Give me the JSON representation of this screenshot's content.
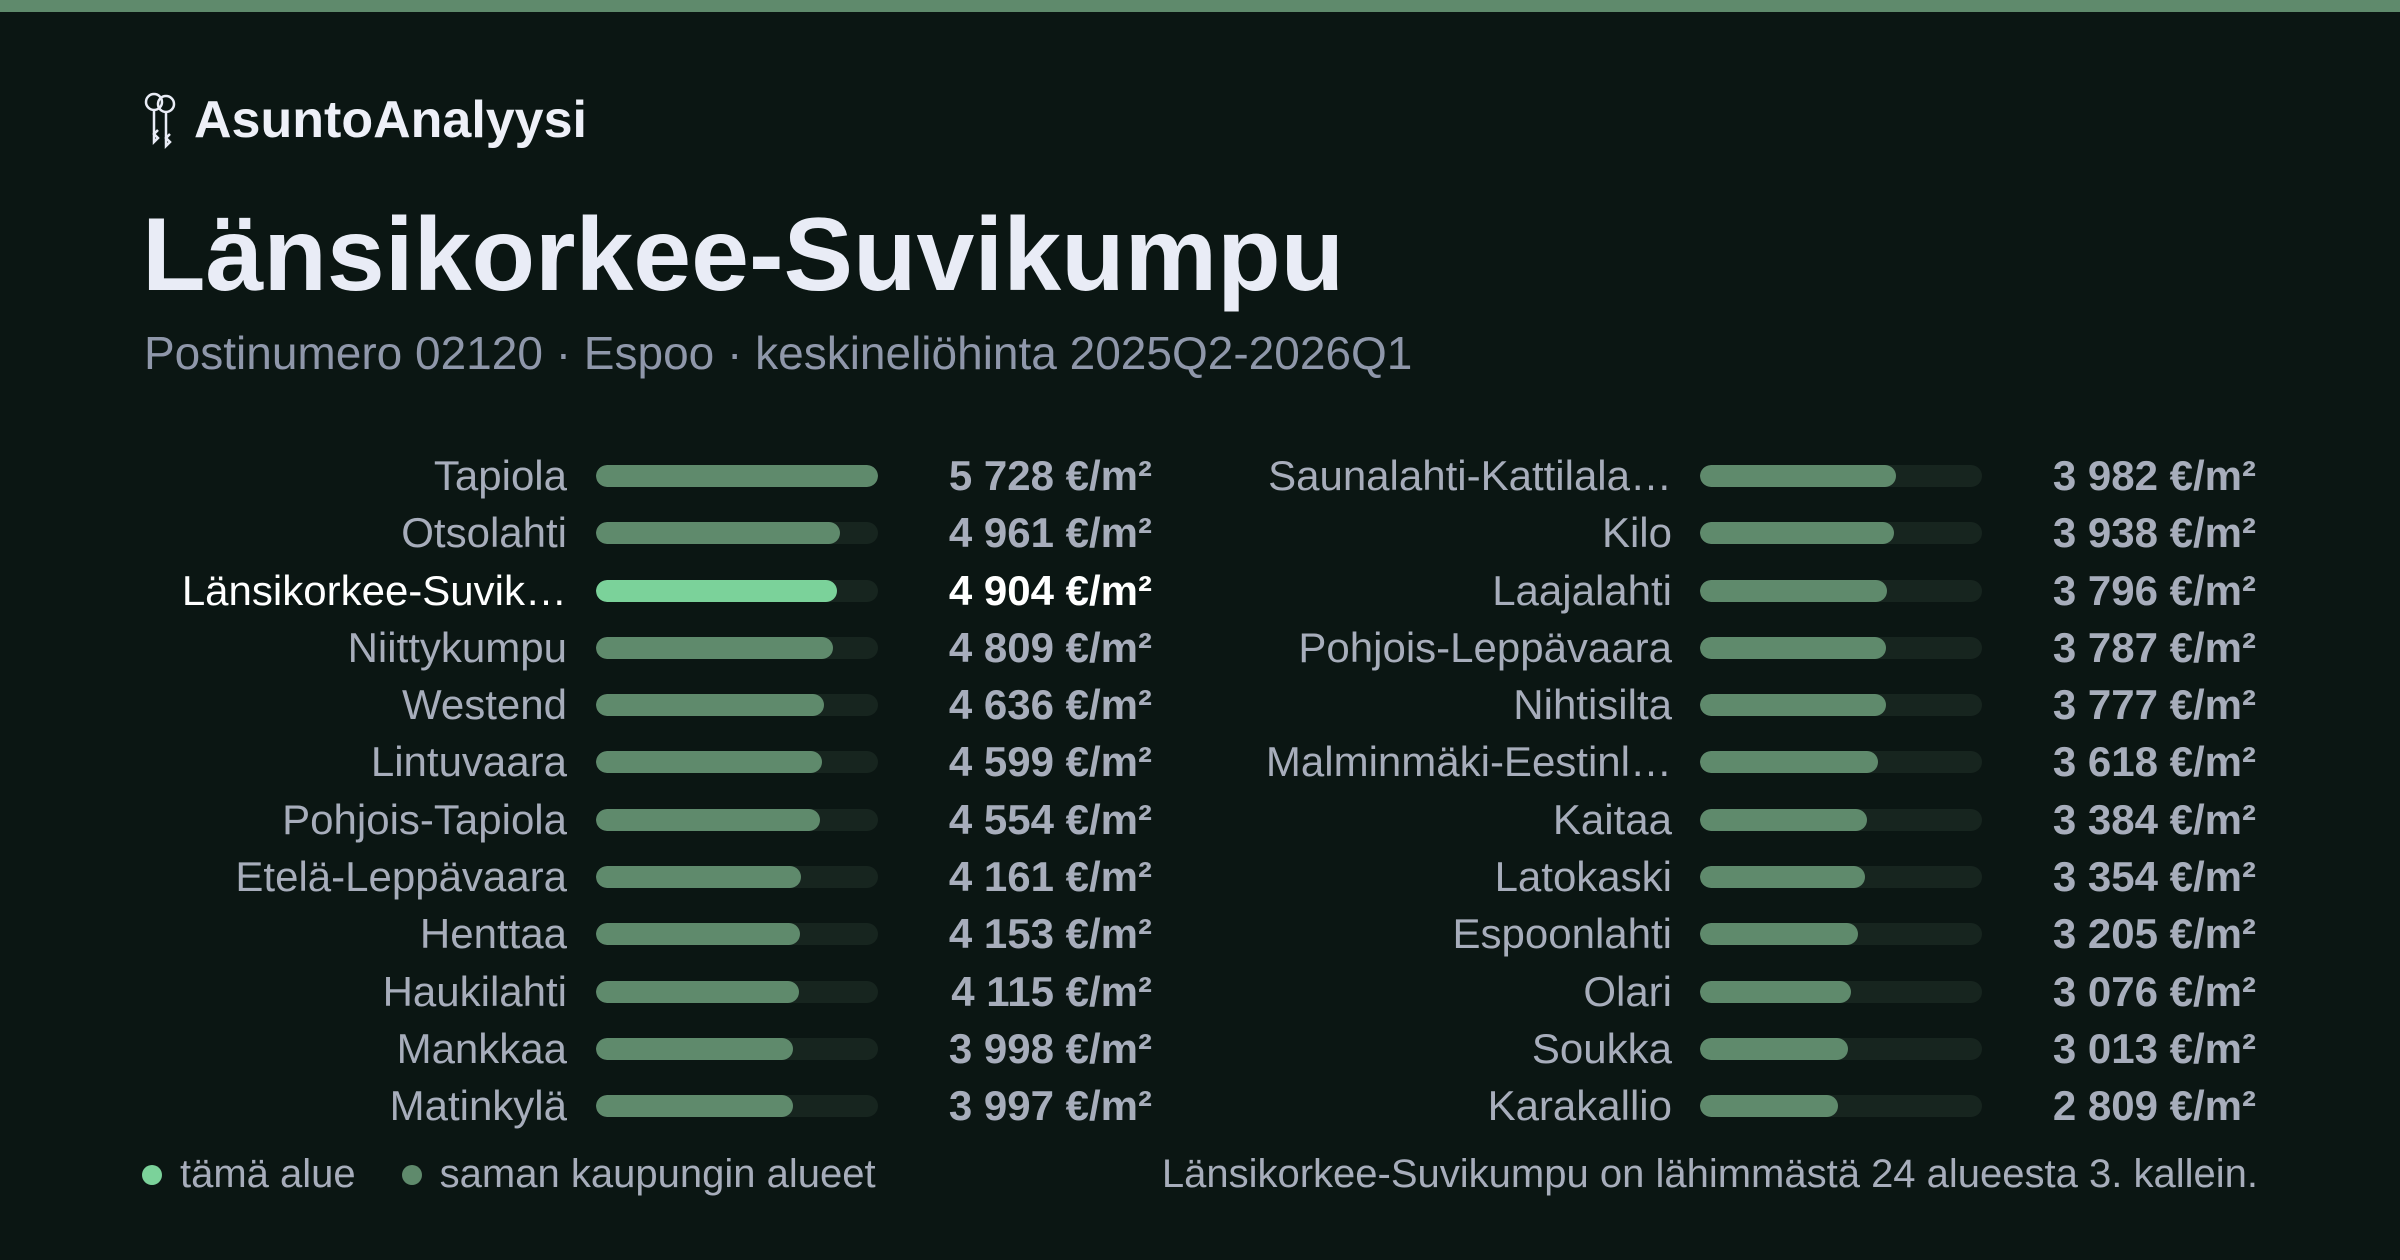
{
  "brand": {
    "name": "AsuntoAnalyysi",
    "icon": "keys-icon"
  },
  "title": "Länsikorkee-Suvikumpu",
  "subtitle": "Postinumero 02120 · Espoo · keskineliöhinta 2025Q2-2026Q1",
  "colors": {
    "background": "#0b1613",
    "accent_bar": "#5f8a6c",
    "highlight": "#7bd29a",
    "text": "#e9ecf6",
    "muted": "#a7adbb"
  },
  "legend": [
    {
      "label": "tämä alue",
      "color": "#7bd29a"
    },
    {
      "label": "saman kaupungin alueet",
      "color": "#5f8a6c"
    }
  ],
  "note": "Länsikorkee-Suvikumpu on lähimmästä 24 alueesta 3. kallein.",
  "chart_data": {
    "type": "bar",
    "orientation": "horizontal",
    "unit": "€/m²",
    "xlim": [
      0,
      5728
    ],
    "highlight_index": 2,
    "categories": [
      "Tapiola",
      "Otsolahti",
      "Länsikorkee-Suvik…",
      "Niittykumpu",
      "Westend",
      "Lintuvaara",
      "Pohjois-Tapiola",
      "Etelä-Leppävaara",
      "Henttaa",
      "Haukilahti",
      "Mankkaa",
      "Matinkylä",
      "Saunalahti-Kattilala…",
      "Kilo",
      "Laajalahti",
      "Pohjois-Leppävaara",
      "Nihtisilta",
      "Malminmäki-Eestinl…",
      "Kaitaa",
      "Latokaski",
      "Espoonlahti",
      "Olari",
      "Soukka",
      "Karakallio"
    ],
    "values": [
      5728,
      4961,
      4904,
      4809,
      4636,
      4599,
      4554,
      4161,
      4153,
      4115,
      3998,
      3997,
      3982,
      3938,
      3796,
      3787,
      3777,
      3618,
      3384,
      3354,
      3205,
      3076,
      3013,
      2809
    ],
    "value_labels": [
      "5 728 €/m²",
      "4 961 €/m²",
      "4 904 €/m²",
      "4 809 €/m²",
      "4 636 €/m²",
      "4 599 €/m²",
      "4 554 €/m²",
      "4 161 €/m²",
      "4 153 €/m²",
      "4 115 €/m²",
      "3 998 €/m²",
      "3 997 €/m²",
      "3 982 €/m²",
      "3 938 €/m²",
      "3 796 €/m²",
      "3 787 €/m²",
      "3 777 €/m²",
      "3 618 €/m²",
      "3 384 €/m²",
      "3 354 €/m²",
      "3 205 €/m²",
      "3 076 €/m²",
      "3 013 €/m²",
      "2 809 €/m²"
    ]
  }
}
